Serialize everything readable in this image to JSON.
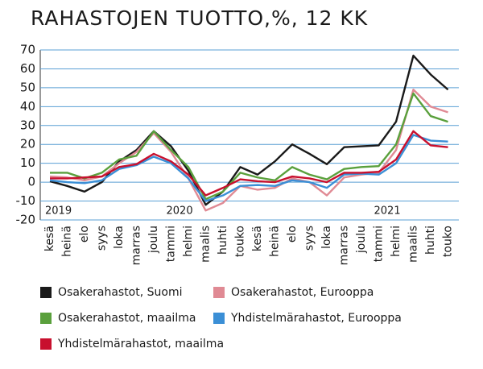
{
  "chart_data": {
    "type": "line",
    "title": "RAHASTOJEN TUOTTO,%, 12 KK",
    "categories": [
      "kesä",
      "heinä",
      "elo",
      "syys",
      "loka",
      "marras",
      "joulu",
      "tammi",
      "helmi",
      "maalis",
      "huhti",
      "touko",
      "kesä",
      "heinä",
      "elo",
      "syys",
      "loka",
      "marras",
      "joulu",
      "tammi",
      "helmi",
      "maalis",
      "huhti",
      "touko"
    ],
    "year_labels": [
      "2019",
      "2020",
      "2021"
    ],
    "series": [
      {
        "name": "Osakerahastot, Suomi",
        "color": "#1a1a1a",
        "values": [
          0.5,
          -2,
          -5,
          0,
          11,
          17,
          27,
          19,
          6,
          -12,
          -5,
          8,
          4,
          11,
          20,
          15,
          9.5,
          18.5,
          19,
          19.5,
          32,
          67,
          57,
          49
        ]
      },
      {
        "name": "Osakerahastot, Eurooppa",
        "color": "#e08a94",
        "values": [
          3,
          2.5,
          1,
          3,
          10,
          16,
          26,
          16,
          2,
          -15,
          -11,
          -2,
          -4,
          -3,
          2,
          0,
          -7,
          2.5,
          4,
          5,
          17,
          49,
          40,
          37
        ]
      },
      {
        "name": "Osakerahastot, maailma",
        "color": "#5aa03c",
        "values": [
          5,
          5,
          2,
          5,
          12,
          14,
          27,
          17,
          8,
          -9,
          -5,
          5,
          2.5,
          1,
          8,
          4,
          1.5,
          7,
          8,
          8.5,
          20,
          47,
          35,
          32
        ]
      },
      {
        "name": "Yhdistelmärahastot, Eurooppa",
        "color": "#3b8fd6",
        "values": [
          1,
          0,
          -0.5,
          1,
          7,
          9,
          13.5,
          10,
          2,
          -10,
          -7,
          -2,
          -1.5,
          -2,
          1,
          0,
          -3,
          4,
          4.5,
          4,
          10,
          25,
          22,
          21.5
        ]
      },
      {
        "name": "Yhdistelmärahastot, maailma",
        "color": "#c8102e",
        "values": [
          2,
          2,
          2.5,
          3,
          8,
          9.5,
          15,
          11,
          4,
          -7,
          -3,
          1.5,
          0.5,
          0,
          3,
          2,
          0,
          5,
          5,
          5.5,
          12,
          27,
          19.5,
          18.5
        ]
      }
    ],
    "ylim": [
      -20,
      70
    ],
    "yticks": [
      -20,
      -10,
      0,
      10,
      20,
      30,
      40,
      50,
      60,
      70
    ],
    "grid": true
  }
}
